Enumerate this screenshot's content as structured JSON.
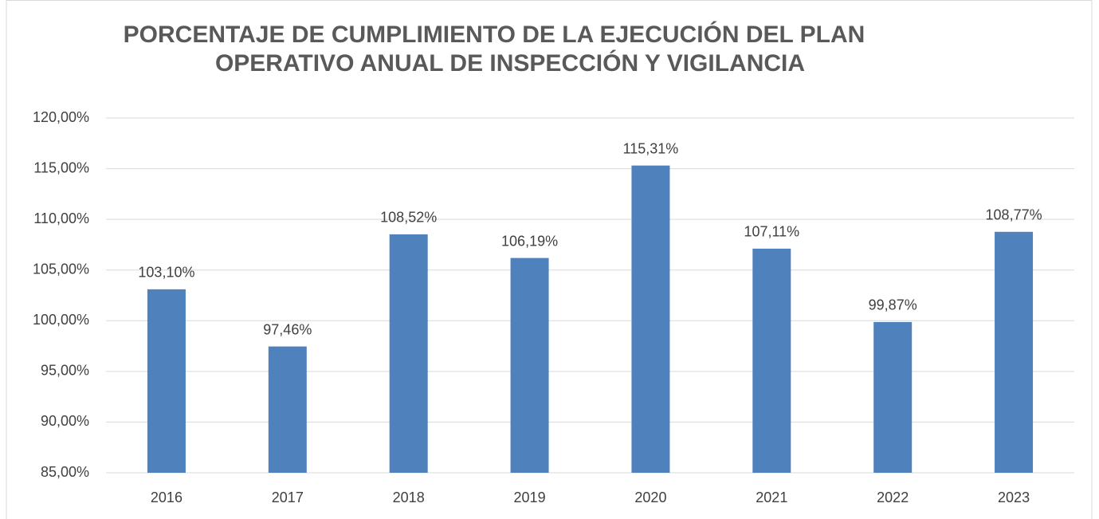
{
  "chart_data": {
    "type": "bar",
    "title": [
      "PORCENTAJE DE CUMPLIMIENTO DE LA EJECUCIÓN DEL PLAN",
      "OPERATIVO ANUAL DE INSPECCIÓN Y VIGILANCIA"
    ],
    "categories": [
      "2016",
      "2017",
      "2018",
      "2019",
      "2020",
      "2021",
      "2022",
      "2023"
    ],
    "values": [
      103.1,
      97.46,
      108.52,
      106.19,
      115.31,
      107.11,
      99.87,
      108.77
    ],
    "value_labels": [
      "103,10%",
      "97,46%",
      "108,52%",
      "106,19%",
      "115,31%",
      "107,11%",
      "99,87%",
      "108,77%"
    ],
    "color": "#4f81bd",
    "ylim": [
      85,
      120
    ],
    "yticks": [
      {
        "value": 85,
        "label": "85,00%"
      },
      {
        "value": 90,
        "label": "90,00%"
      },
      {
        "value": 95,
        "label": "95,00%"
      },
      {
        "value": 100,
        "label": "100,00%"
      },
      {
        "value": 105,
        "label": "105,00%"
      },
      {
        "value": 110,
        "label": "110,00%"
      },
      {
        "value": 115,
        "label": "115,00%"
      },
      {
        "value": 120,
        "label": "120,00%"
      }
    ],
    "grid": true
  }
}
